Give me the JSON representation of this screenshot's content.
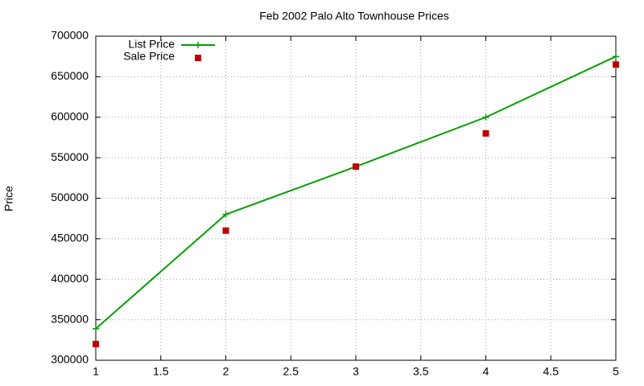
{
  "chart_data": {
    "type": "line",
    "title": "Feb 2002 Palo Alto Townhouse Prices",
    "y_label": "Price",
    "x": [
      1,
      2,
      3,
      4,
      5
    ],
    "series": [
      {
        "name": "List Price",
        "color": "#00a000",
        "marker": "plus",
        "line": true,
        "values": [
          339000,
          480000,
          539000,
          600000,
          675000
        ]
      },
      {
        "name": "Sale Price",
        "color": "#c00000",
        "marker": "square",
        "line": false,
        "values": [
          320000,
          460000,
          539000,
          580000,
          665000
        ]
      }
    ],
    "xlim": [
      1,
      5
    ],
    "xticks": [
      1,
      1.5,
      2,
      2.5,
      3,
      3.5,
      4,
      4.5,
      5
    ],
    "ylim": [
      300000,
      700000
    ],
    "yticks": [
      300000,
      350000,
      400000,
      450000,
      500000,
      550000,
      600000,
      650000,
      700000
    ],
    "grid": true,
    "legend": "top-left"
  }
}
